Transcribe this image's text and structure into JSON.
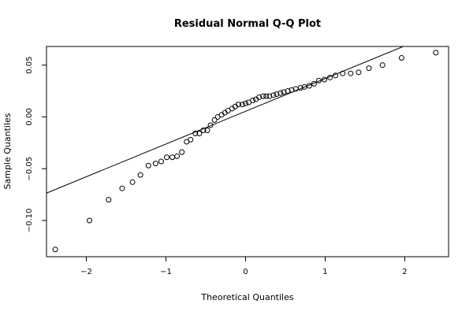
{
  "chart_data": {
    "type": "scatter",
    "title": "Residual Normal Q-Q Plot",
    "xlabel": "Theoretical Quantiles",
    "ylabel": "Sample Quantiles",
    "xlim": [
      -2.5,
      2.55
    ],
    "ylim": [
      -0.135,
      0.068
    ],
    "xticks": [
      -2,
      -1,
      0,
      1,
      2
    ],
    "xtick_labels": [
      "−2",
      "−1",
      "0",
      "1",
      "2"
    ],
    "yticks": [
      -0.1,
      -0.05,
      0.0,
      0.05
    ],
    "ytick_labels": [
      "−0.10",
      "−0.05",
      "0.00",
      "0.05"
    ],
    "grid": false,
    "series": [
      {
        "values_x": [
          -2.39,
          -1.96,
          -1.72,
          -1.55,
          -1.42,
          -1.32,
          -1.22,
          -1.13,
          -1.06,
          -0.99,
          -0.92,
          -0.86,
          -0.8,
          -0.74,
          -0.69,
          -0.63,
          -0.58,
          -0.53,
          -0.48,
          -0.44,
          -0.39,
          -0.35,
          -0.3,
          -0.26,
          -0.22,
          -0.17,
          -0.13,
          -0.09,
          -0.04,
          0.0,
          0.04,
          0.09,
          0.13,
          0.17,
          0.22,
          0.26,
          0.3,
          0.35,
          0.39,
          0.44,
          0.48,
          0.53,
          0.58,
          0.63,
          0.69,
          0.74,
          0.8,
          0.86,
          0.92,
          0.99,
          1.06,
          1.13,
          1.22,
          1.32,
          1.42,
          1.55,
          1.72,
          1.96,
          2.39
        ],
        "values_y": [
          -0.128,
          -0.1,
          -0.08,
          -0.069,
          -0.063,
          -0.056,
          -0.047,
          -0.045,
          -0.043,
          -0.039,
          -0.039,
          -0.038,
          -0.034,
          -0.024,
          -0.022,
          -0.016,
          -0.016,
          -0.013,
          -0.013,
          -0.008,
          -0.003,
          0.0,
          0.002,
          0.004,
          0.006,
          0.008,
          0.01,
          0.012,
          0.012,
          0.013,
          0.014,
          0.016,
          0.017,
          0.019,
          0.02,
          0.02,
          0.02,
          0.021,
          0.022,
          0.023,
          0.024,
          0.025,
          0.026,
          0.027,
          0.028,
          0.029,
          0.03,
          0.032,
          0.035,
          0.036,
          0.038,
          0.04,
          0.042,
          0.042,
          0.043,
          0.047,
          0.05,
          0.057,
          0.062
        ]
      }
    ],
    "reference_line": {
      "intercept": 0.0054,
      "slope": 0.0316
    }
  }
}
